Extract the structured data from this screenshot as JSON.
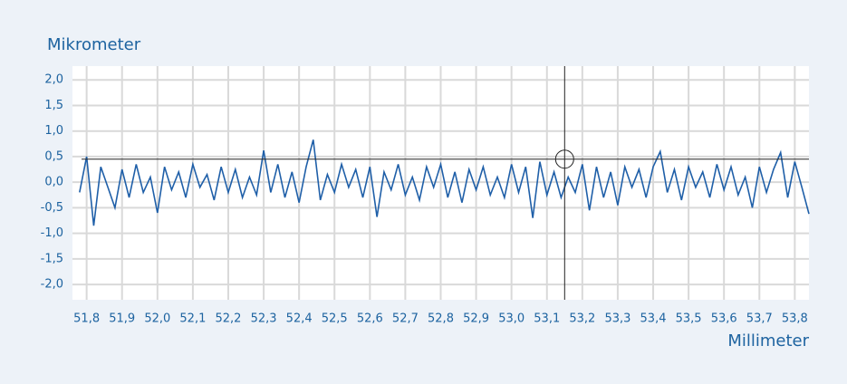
{
  "chart_data": {
    "type": "line",
    "y_label": "Mikrometer",
    "x_label": "Millimeter",
    "color": "#1f5fa8",
    "grid": true,
    "xlim": [
      51.76,
      53.84
    ],
    "ylim": [
      -2.3,
      2.27
    ],
    "xticks": [
      {
        "value": 51.8,
        "label": "51,8"
      },
      {
        "value": 51.9,
        "label": "51,9"
      },
      {
        "value": 52.0,
        "label": "52,0"
      },
      {
        "value": 52.1,
        "label": "52,1"
      },
      {
        "value": 52.2,
        "label": "52,2"
      },
      {
        "value": 52.3,
        "label": "52,3"
      },
      {
        "value": 52.4,
        "label": "52,4"
      },
      {
        "value": 52.5,
        "label": "52,5"
      },
      {
        "value": 52.6,
        "label": "52,6"
      },
      {
        "value": 52.7,
        "label": "52,7"
      },
      {
        "value": 52.8,
        "label": "52,8"
      },
      {
        "value": 52.9,
        "label": "52,9"
      },
      {
        "value": 53.0,
        "label": "53,0"
      },
      {
        "value": 53.1,
        "label": "53,1"
      },
      {
        "value": 53.2,
        "label": "53,2"
      },
      {
        "value": 53.3,
        "label": "53,3"
      },
      {
        "value": 53.4,
        "label": "53,4"
      },
      {
        "value": 53.5,
        "label": "53,5"
      },
      {
        "value": 53.6,
        "label": "53,6"
      },
      {
        "value": 53.7,
        "label": "53,7"
      },
      {
        "value": 53.8,
        "label": "53,8"
      }
    ],
    "yticks": [
      {
        "value": 2.0,
        "label": "2,0"
      },
      {
        "value": 1.5,
        "label": "1,5"
      },
      {
        "value": 1.0,
        "label": "1,0"
      },
      {
        "value": 0.5,
        "label": "0,5"
      },
      {
        "value": 0.0,
        "label": "0,0"
      },
      {
        "value": -0.5,
        "label": "-0,5"
      },
      {
        "value": -1.0,
        "label": "-1,0"
      },
      {
        "value": -1.5,
        "label": "-1,5"
      },
      {
        "value": -2.0,
        "label": "-2,0"
      }
    ],
    "crosshair": {
      "x": 53.15,
      "y": 0.45
    },
    "x": [
      51.78,
      51.8,
      51.82,
      51.84,
      51.86,
      51.88,
      51.9,
      51.92,
      51.94,
      51.96,
      51.98,
      52.0,
      52.02,
      52.04,
      52.06,
      52.08,
      52.1,
      52.12,
      52.14,
      52.16,
      52.18,
      52.2,
      52.22,
      52.24,
      52.26,
      52.28,
      52.3,
      52.32,
      52.34,
      52.36,
      52.38,
      52.4,
      52.42,
      52.44,
      52.46,
      52.48,
      52.5,
      52.52,
      52.54,
      52.56,
      52.58,
      52.6,
      52.62,
      52.64,
      52.66,
      52.68,
      52.7,
      52.72,
      52.74,
      52.76,
      52.78,
      52.8,
      52.82,
      52.84,
      52.86,
      52.88,
      52.9,
      52.92,
      52.94,
      52.96,
      52.98,
      53.0,
      53.02,
      53.04,
      53.06,
      53.08,
      53.1,
      53.12,
      53.14,
      53.16,
      53.18,
      53.2,
      53.22,
      53.24,
      53.26,
      53.28,
      53.3,
      53.32,
      53.34,
      53.36,
      53.38,
      53.4,
      53.42,
      53.44,
      53.46,
      53.48,
      53.5,
      53.52,
      53.54,
      53.56,
      53.58,
      53.6,
      53.62,
      53.64,
      53.66,
      53.68,
      53.7,
      53.72,
      53.74,
      53.76,
      53.78,
      53.8,
      53.82,
      53.84
    ],
    "values": [
      -0.2,
      0.5,
      -0.85,
      0.3,
      -0.1,
      -0.5,
      0.25,
      -0.3,
      0.35,
      -0.2,
      0.1,
      -0.6,
      0.3,
      -0.15,
      0.2,
      -0.3,
      0.35,
      -0.1,
      0.15,
      -0.35,
      0.3,
      -0.2,
      0.25,
      -0.3,
      0.1,
      -0.25,
      0.62,
      -0.2,
      0.35,
      -0.3,
      0.2,
      -0.4,
      0.3,
      0.83,
      -0.35,
      0.15,
      -0.2,
      0.35,
      -0.1,
      0.25,
      -0.3,
      0.3,
      -0.68,
      0.2,
      -0.15,
      0.35,
      -0.25,
      0.1,
      -0.35,
      0.3,
      -0.1,
      0.35,
      -0.3,
      0.2,
      -0.4,
      0.25,
      -0.15,
      0.3,
      -0.25,
      0.1,
      -0.3,
      0.35,
      -0.2,
      0.3,
      -0.7,
      0.4,
      -0.25,
      0.2,
      -0.3,
      0.1,
      -0.2,
      0.35,
      -0.55,
      0.3,
      -0.3,
      0.2,
      -0.45,
      0.3,
      -0.1,
      0.25,
      -0.3,
      0.3,
      0.6,
      -0.2,
      0.25,
      -0.35,
      0.3,
      -0.1,
      0.2,
      -0.3,
      0.35,
      -0.15,
      0.3,
      -0.25,
      0.1,
      -0.5,
      0.3,
      -0.2,
      0.25,
      0.58,
      -0.3,
      0.4,
      -0.1,
      -0.62
    ]
  }
}
